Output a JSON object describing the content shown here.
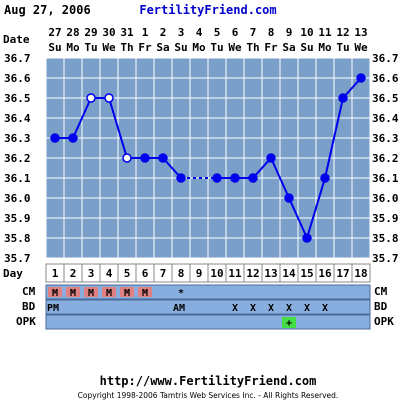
{
  "header": {
    "date": "Aug 27, 2006",
    "site": "FertilityFriend.com"
  },
  "labels": {
    "date_row": "Date",
    "day_row": "Day",
    "cm_row": "CM",
    "bd_row": "BD",
    "opk_row": "OPK"
  },
  "footer": {
    "url": "http://www.FertilityFriend.com",
    "copyright": "Copyright 1998-2006 Tamtris Web Services Inc. - All Rights Reserved."
  },
  "colors": {
    "plot_bg": "#7a9fc8",
    "grid": "#ffffff",
    "line": "#0000ee",
    "cm_cell": "#e08080",
    "row_bg": "#88aee0",
    "opk_positive": "#44dd44",
    "text": "#000000",
    "site_link": "#0000cc"
  },
  "chart_data": {
    "type": "line",
    "title": "",
    "xlabel": "Day",
    "ylabel": "",
    "ylim": [
      35.7,
      36.7
    ],
    "yticks": [
      "35.7",
      "35.8",
      "35.9",
      "36.0",
      "36.1",
      "36.2",
      "36.3",
      "36.4",
      "36.5",
      "36.6",
      "36.7"
    ],
    "grid": true,
    "dates": [
      "27",
      "28",
      "29",
      "30",
      "31",
      "1",
      "2",
      "3",
      "4",
      "5",
      "6",
      "7",
      "8",
      "9",
      "10",
      "11",
      "12",
      "13"
    ],
    "weekdays": [
      "Su",
      "Mo",
      "Tu",
      "We",
      "Th",
      "Fr",
      "Sa",
      "Su",
      "Mo",
      "Tu",
      "We",
      "Th",
      "Fr",
      "Sa",
      "Su",
      "Mo",
      "Tu",
      "We"
    ],
    "cycle_days": [
      "1",
      "2",
      "3",
      "4",
      "5",
      "6",
      "7",
      "8",
      "9",
      "10",
      "11",
      "12",
      "13",
      "14",
      "15",
      "16",
      "17",
      "18"
    ],
    "series": [
      {
        "values": [
          36.3,
          36.3,
          36.5,
          36.5,
          36.2,
          36.2,
          36.2,
          36.1,
          null,
          36.1,
          36.1,
          36.1,
          36.2,
          36.0,
          35.8,
          36.1,
          36.5,
          36.6
        ],
        "hollow_days": [
          3,
          4,
          5
        ],
        "dashed_from_day": 7,
        "dashed_to_day": 10
      }
    ],
    "cm": [
      "M",
      "M",
      "M",
      "M",
      "M",
      "M",
      "",
      "*",
      "",
      "",
      "",
      "",
      "",
      "",
      "",
      "",
      "",
      ""
    ],
    "bd": [
      "PM",
      "",
      "",
      "",
      "",
      "",
      "",
      "AM",
      "",
      "",
      "X",
      "X",
      "X",
      "X",
      "X",
      "X",
      "",
      ""
    ],
    "opk": [
      "",
      "",
      "",
      "",
      "",
      "",
      "",
      "",
      "",
      "",
      "",
      "",
      "",
      "+",
      "",
      "",
      "",
      ""
    ]
  }
}
